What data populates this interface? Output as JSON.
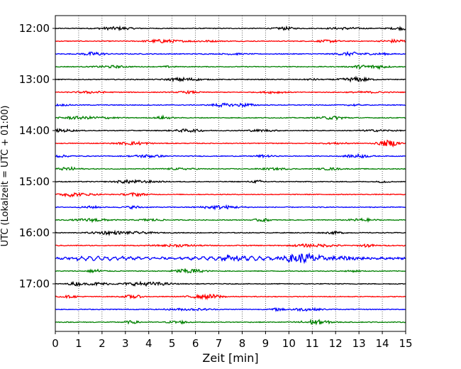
{
  "chart_data": {
    "type": "line",
    "title": "",
    "xlabel": "Zeit  [min]",
    "ylabel": "UTC (Lokalzeit = UTC + 01:00)",
    "xlim": [
      0,
      15
    ],
    "x_ticks": [
      0,
      1,
      2,
      3,
      4,
      5,
      6,
      7,
      8,
      9,
      10,
      11,
      12,
      13,
      14,
      15
    ],
    "y_tick_labels": [
      "12:00",
      "13:00",
      "14:00",
      "15:00",
      "16:00",
      "17:00"
    ],
    "grid": "vertical dotted lines at each minute",
    "trace_colors": [
      "#000000",
      "#ff0000",
      "#0000ff",
      "#008000"
    ],
    "series": [
      {
        "start": "12:00",
        "amplitude": 1.0
      },
      {
        "start": "12:15",
        "amplitude": 1.0
      },
      {
        "start": "12:30",
        "amplitude": 1.1
      },
      {
        "start": "12:45",
        "amplitude": 1.0
      },
      {
        "start": "13:00",
        "amplitude": 1.0
      },
      {
        "start": "13:15",
        "amplitude": 1.0
      },
      {
        "start": "13:30",
        "amplitude": 1.0
      },
      {
        "start": "13:45",
        "amplitude": 1.0
      },
      {
        "start": "14:00",
        "amplitude": 1.0
      },
      {
        "start": "14:15",
        "amplitude": 1.0
      },
      {
        "start": "14:30",
        "amplitude": 1.0
      },
      {
        "start": "14:45",
        "amplitude": 1.0
      },
      {
        "start": "15:00",
        "amplitude": 1.0
      },
      {
        "start": "15:15",
        "amplitude": 1.0
      },
      {
        "start": "15:30",
        "amplitude": 1.0
      },
      {
        "start": "15:45",
        "amplitude": 1.0
      },
      {
        "start": "16:00",
        "amplitude": 1.0
      },
      {
        "start": "16:15",
        "amplitude": 1.2
      },
      {
        "start": "16:30",
        "amplitude": 2.2
      },
      {
        "start": "16:45",
        "amplitude": 1.0
      },
      {
        "start": "17:00",
        "amplitude": 1.0
      },
      {
        "start": "17:15",
        "amplitude": 1.0
      },
      {
        "start": "17:30",
        "amplitude": 1.0
      },
      {
        "start": "17:45",
        "amplitude": 1.0
      }
    ]
  }
}
